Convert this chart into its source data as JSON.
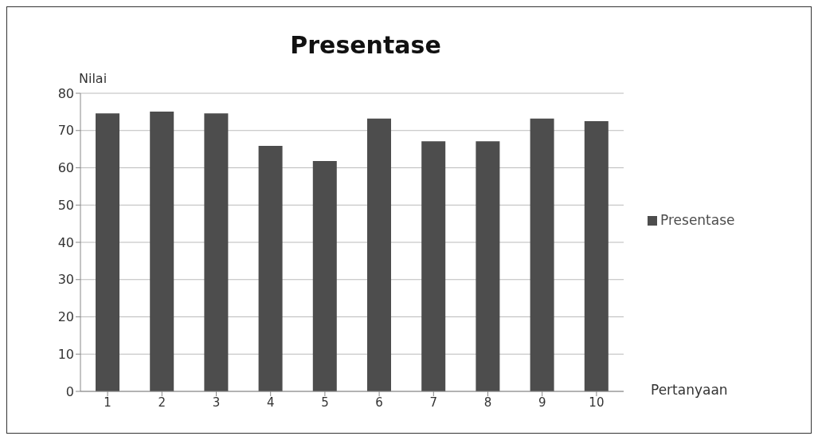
{
  "chart_data": {
    "type": "bar",
    "title": "Presentase",
    "xlabel": "Pertanyaan",
    "ylabel": "Nilai",
    "categories": [
      "1",
      "2",
      "3",
      "4",
      "5",
      "6",
      "7",
      "8",
      "9",
      "10"
    ],
    "series": [
      {
        "name": "Presentase",
        "color": "#4d4d4d",
        "values": [
          74.6,
          75.1,
          74.6,
          65.9,
          61.8,
          73.2,
          67.1,
          67.1,
          73.2,
          72.5
        ]
      }
    ],
    "ylim": [
      0,
      80
    ],
    "yticks": [
      0,
      10,
      20,
      30,
      40,
      50,
      60,
      70,
      80
    ],
    "grid": "y",
    "legend": "right"
  }
}
